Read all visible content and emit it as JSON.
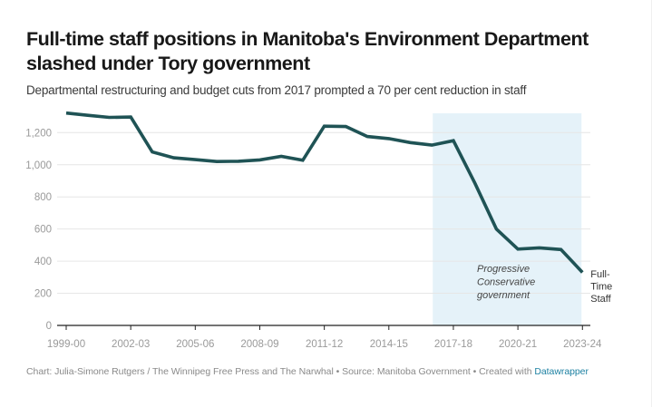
{
  "header": {
    "title": "Full-time staff positions in Manitoba's Environment Department slashed under Tory government",
    "subtitle": "Departmental restructuring and budget cuts from 2017 prompted a 70 per cent reduction in staff"
  },
  "footer": {
    "credit": "Chart: Julia-Simone Rutgers / The Winnipeg Free Press and The Narwhal",
    "separator": " • ",
    "source": "Source: Manitoba Government",
    "created_with": "Created with ",
    "tool_link": "Datawrapper"
  },
  "colors": {
    "line": "#1f5355",
    "highlight": "#e5f2f9",
    "grid": "#e6e6e6",
    "axis": "#222222",
    "tick_label": "#9a9a9a",
    "annotation": "#444444",
    "link": "#1d81a2"
  },
  "chart_data": {
    "type": "line",
    "title": "Full-time staff positions in Manitoba's Environment Department slashed under Tory government",
    "subtitle": "Departmental restructuring and budget cuts from 2017 prompted a 70 per cent reduction in staff",
    "xlabel": "",
    "ylabel": "",
    "x": [
      "1999-00",
      "2000-01",
      "2001-02",
      "2002-03",
      "2003-04",
      "2004-05",
      "2005-06",
      "2006-07",
      "2007-08",
      "2008-09",
      "2009-10",
      "2010-11",
      "2011-12",
      "2012-13",
      "2013-14",
      "2014-15",
      "2015-16",
      "2016-17",
      "2017-18",
      "2018-19",
      "2019-20",
      "2020-21",
      "2021-22",
      "2022-23",
      "2023-24"
    ],
    "x_ticks": [
      "1999-00",
      "2002-03",
      "2005-06",
      "2008-09",
      "2011-12",
      "2014-15",
      "2017-18",
      "2020-21",
      "2023-24"
    ],
    "series": [
      {
        "name": "Full-Time Staff",
        "label_lines": [
          "Full-",
          "Time",
          "Staff"
        ],
        "values": [
          1322,
          1308,
          1295,
          1297,
          1080,
          1043,
          1032,
          1020,
          1022,
          1030,
          1052,
          1028,
          1240,
          1238,
          1176,
          1163,
          1138,
          1122,
          1150,
          885,
          600,
          475,
          483,
          472,
          330
        ]
      }
    ],
    "ylim": [
      0,
      1320
    ],
    "y_ticks": [
      0,
      200,
      400,
      600,
      800,
      1000,
      1200
    ],
    "y_tick_labels": [
      "0",
      "200",
      "400",
      "600",
      "800",
      "1,000",
      "1,200"
    ],
    "grid": true,
    "legend": "none (direct label at line end, right)",
    "highlight_range": {
      "from": "2016-17",
      "to": "2023-24",
      "label_lines": [
        "Progressive",
        "Conservative",
        "government"
      ]
    }
  }
}
